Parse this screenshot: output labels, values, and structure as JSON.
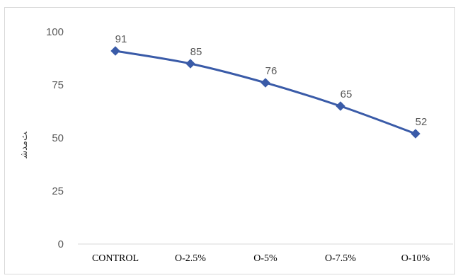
{
  "chart_data": {
    "type": "line",
    "categories": [
      "CONTROL",
      "O-2.5%",
      "O-5%",
      "O-7.5%",
      "O-10%"
    ],
    "series": [
      {
        "values": [
          91,
          85,
          76,
          65,
          52
        ]
      }
    ],
    "ylim": [
      0,
      100
    ],
    "yticks": [
      0,
      25,
      50,
      75,
      100
    ],
    "ylabel": "ﺚﻣﺪﺷ",
    "xlabel": "",
    "grid": false,
    "legend": "none",
    "marker": "diamond",
    "colors": {
      "series": "#3a5ba8",
      "axis": "#d9d9d9"
    }
  }
}
